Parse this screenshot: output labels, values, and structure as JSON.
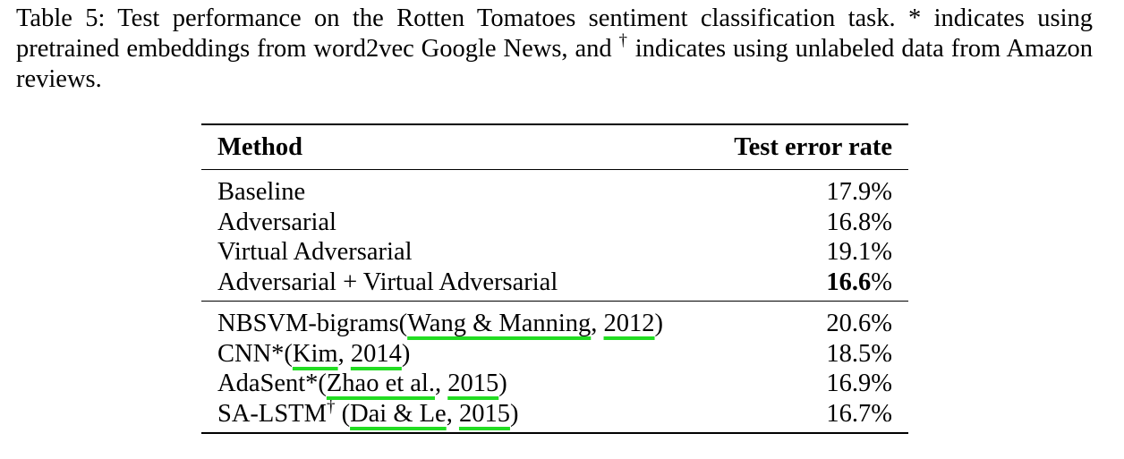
{
  "caption": {
    "prefix": "Table 5: Test performance on the Rotten Tomatoes sentiment classification task. * indicates using pretrained embeddings from word2vec Google News, and",
    "dagger": "†",
    "suffix": "indicates using unlabeled data from Amazon reviews."
  },
  "table": {
    "headers": {
      "method": "Method",
      "error": "Test error rate"
    },
    "group1": [
      {
        "method": "Baseline",
        "error": "17.9%"
      },
      {
        "method": "Adversarial",
        "error": "16.8%"
      },
      {
        "method": "Virtual Adversarial",
        "error": "19.1%"
      },
      {
        "method": "Adversarial + Virtual Adversarial",
        "error_bold": "16.6",
        "error_unit": "%"
      }
    ],
    "group2": [
      {
        "name": "NBSVM-bigrams(",
        "author": "Wang & Manning",
        "sep": ", ",
        "year": "2012",
        "close": ")",
        "error": "20.6%"
      },
      {
        "name": "CNN*(",
        "author": "Kim",
        "sep": ", ",
        "year": "2014",
        "close": ")",
        "error": "18.5%"
      },
      {
        "name": "AdaSent*(",
        "author": "Zhao et al.",
        "sep": ", ",
        "year": "2015",
        "close": ")",
        "error": "16.9%"
      },
      {
        "name": "SA-LSTM",
        "dagger": "†",
        "open": " (",
        "author": "Dai & Le",
        "sep": ", ",
        "year": "2015",
        "close": ")",
        "error": "16.7%"
      }
    ]
  }
}
